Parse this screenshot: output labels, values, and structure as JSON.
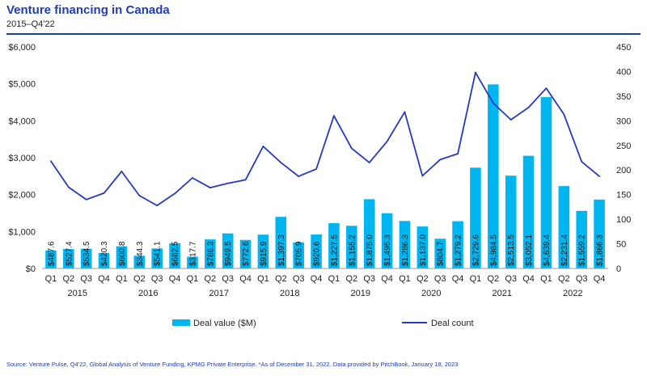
{
  "title": "Venture financing in Canada",
  "subtitle": "2015–Q4'22",
  "footer": "Source: Venture Pulse, Q4'22, Global Analysis of Venture Funding, KPMG Private Enterprise. *As of December 31, 2022. Data provided by PitchBook, January 18, 2023",
  "colors": {
    "bar": "#00b6f0",
    "line": "#2438c8",
    "title": "#1e3cbe"
  },
  "chart_data": {
    "type": "bar",
    "categories": [
      "Q1",
      "Q2",
      "Q3",
      "Q4",
      "Q1",
      "Q2",
      "Q3",
      "Q4",
      "Q1",
      "Q2",
      "Q3",
      "Q4",
      "Q1",
      "Q2",
      "Q3",
      "Q4",
      "Q1",
      "Q2",
      "Q3",
      "Q4",
      "Q1",
      "Q2",
      "Q3",
      "Q4",
      "Q1",
      "Q2",
      "Q3",
      "Q4",
      "Q1",
      "Q2",
      "Q3",
      "Q4"
    ],
    "years": [
      "2015",
      "2016",
      "2017",
      "2018",
      "2019",
      "2020",
      "2021",
      "2022"
    ],
    "value_labels": [
      "$487.6",
      "$527.4",
      "$534.5",
      "$420.3",
      "$600.8",
      "$344.3",
      "$541.1",
      "$682.5",
      "$317.7",
      "$786.3",
      "$949.5",
      "$772.6",
      "$915.9",
      "$1,397.3",
      "$705.9",
      "$920.6",
      "$1,227.5",
      "$1,155.2",
      "$1,875.0",
      "$1,495.3",
      "$1,286.3",
      "$1,137.0",
      "$804.7",
      "$1,279.2",
      "$2,729.6",
      "$4,984.5",
      "$2,513.5",
      "$3,052.1",
      "$4,639.4",
      "$2,231.4",
      "$1,559.2",
      "$1,866.3"
    ],
    "series": [
      {
        "name": "Deal value ($M)",
        "type": "bar",
        "axis": "left",
        "values": [
          487.6,
          527.4,
          534.5,
          420.3,
          600.8,
          344.3,
          541.1,
          682.5,
          317.7,
          786.3,
          949.5,
          772.6,
          915.9,
          1397.3,
          705.9,
          920.6,
          1227.5,
          1155.2,
          1875.0,
          1495.3,
          1286.3,
          1137.0,
          804.7,
          1279.2,
          2729.6,
          4984.5,
          2513.5,
          3052.1,
          4639.4,
          2231.4,
          1559.2,
          1866.3
        ]
      },
      {
        "name": "Deal count",
        "type": "line",
        "axis": "right",
        "values": [
          218,
          165,
          140,
          153,
          197,
          148,
          128,
          152,
          184,
          164,
          173,
          180,
          248,
          215,
          187,
          202,
          310,
          244,
          215,
          258,
          318,
          188,
          221,
          233,
          398,
          336,
          302,
          327,
          366,
          313,
          217,
          187
        ]
      }
    ],
    "left_axis": {
      "min": 0,
      "max": 6000,
      "ticks": [
        "$0",
        "$1,000",
        "$2,000",
        "$3,000",
        "$4,000",
        "$5,000",
        "$6,000"
      ]
    },
    "right_axis": {
      "min": 0,
      "max": 450,
      "ticks": [
        "0",
        "50",
        "100",
        "150",
        "200",
        "250",
        "300",
        "350",
        "400",
        "450"
      ]
    },
    "legend_position": "bottom",
    "grid": false
  }
}
